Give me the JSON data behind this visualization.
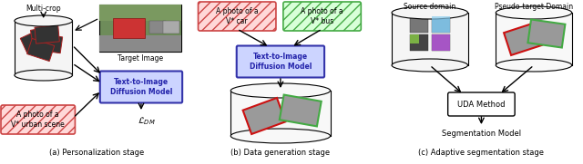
{
  "bg_color": "#ffffff",
  "panel_a": {
    "label": "(a) Personalization stage",
    "multicrop_text": "Multi-crop",
    "box1_text": "Text-to-Image\nDiffusion Model",
    "box1_bg": "#ccd4ff",
    "box1_ec": "#3333aa",
    "prompt_text": "A photo of a\nV* urban scene",
    "prompt_bg": "#ffd8d8",
    "prompt_border": "#cc4444",
    "loss_text": "$\\mathcal{L}_{DM}$",
    "target_label": "Target Image"
  },
  "panel_b": {
    "label": "(b) Data generation stage",
    "prompt1_text": "A photo of a\nV* car",
    "prompt1_bg": "#ffd8d8",
    "prompt1_border": "#cc4444",
    "prompt2_text": "A photo of a\nV* bus",
    "prompt2_bg": "#d8ffd8",
    "prompt2_border": "#44aa44",
    "box_text": "Text-to-Image\nDiffusion Model",
    "box_bg": "#ccd4ff",
    "box_ec": "#3333aa"
  },
  "panel_c": {
    "label": "(c) Adaptive segmentation stage",
    "source_label": "Source domain",
    "pseudo_label": "Pseudo-target Domain",
    "uda_text": "UDA Method",
    "seg_text": "Segmentation Model"
  }
}
